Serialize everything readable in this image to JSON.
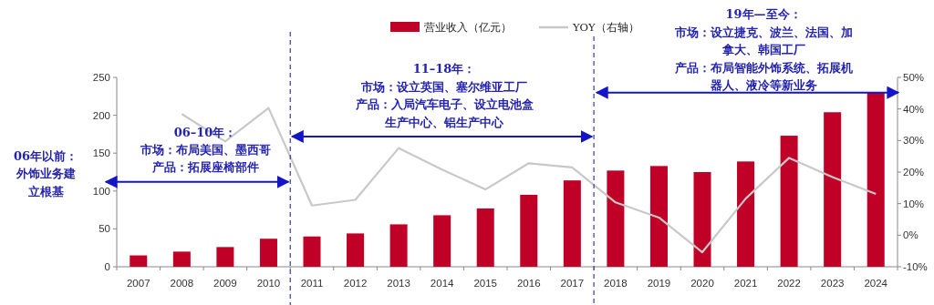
{
  "chart_data": {
    "type": "bar",
    "categories": [
      "2007",
      "2008",
      "2009",
      "2010",
      "2011",
      "2012",
      "2013",
      "2014",
      "2015",
      "2016",
      "2017",
      "2018",
      "2019",
      "2020",
      "2021",
      "2022",
      "2023",
      "2024"
    ],
    "series": [
      {
        "name": "营业收入（亿元）",
        "color": "#c00027",
        "values": [
          15,
          20,
          26,
          37,
          40,
          44,
          56,
          68,
          77,
          95,
          114,
          127,
          133,
          125,
          139,
          173,
          204,
          230
        ]
      },
      {
        "name": "YOY（右轴）",
        "type": "line",
        "axis": "y2",
        "color": "#c8c8c8",
        "values": [
          null,
          38.4,
          29.7,
          40.3,
          9.4,
          11.2,
          27.6,
          20.8,
          14.5,
          22.8,
          21.5,
          10.4,
          5.6,
          -5.4,
          11.6,
          24.5,
          18.4,
          13.1
        ]
      }
    ],
    "ylim": [
      0,
      250
    ],
    "yticks": [
      0,
      50,
      100,
      150,
      200,
      250
    ],
    "y2lim": [
      -10,
      50
    ],
    "y2ticks": [
      {
        "value": -10,
        "label": "-10%"
      },
      {
        "value": 0,
        "label": "0%"
      },
      {
        "value": 10,
        "label": "10%"
      },
      {
        "value": 20,
        "label": "20%"
      },
      {
        "value": 30,
        "label": "30%"
      },
      {
        "value": 40,
        "label": "40%"
      },
      {
        "value": 50,
        "label": "50%"
      }
    ],
    "legend": "top",
    "grid": false,
    "annotations": [
      "06年以前：",
      "外饰业务建立根基",
      "06–10年：",
      "市场：布局美国、墨西哥",
      "产品：拓展座椅部件",
      "11–18年：",
      "市场：设立英国、塞尔维亚工厂",
      "产品：入局汽车电子、设立电池盒生产中心、铝生产中心",
      "19年—至今：",
      "市场：设立捷克、波兰、法国、加拿大、韩国工厂",
      "产品：布局智能外饰系统、拓展机器人、液冷等新业务"
    ]
  }
}
